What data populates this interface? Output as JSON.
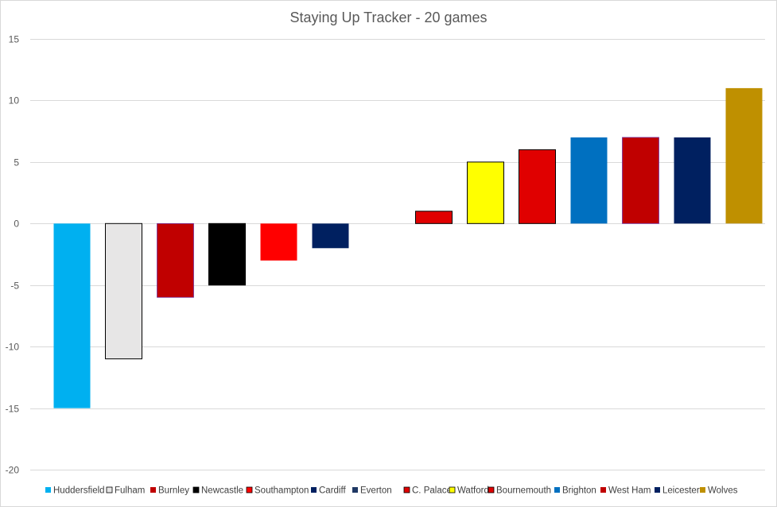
{
  "chart_data": {
    "type": "bar",
    "title": "Staying Up Tracker - 20 games",
    "xlabel": "",
    "ylabel": "",
    "ylim": [
      -20,
      15
    ],
    "yticks": [
      15,
      10,
      5,
      0,
      -5,
      -10,
      -15,
      -20
    ],
    "grid": true,
    "legend_position": "bottom",
    "series": [
      {
        "name": "Huddersfield",
        "value": -15,
        "color": "#00B0F0"
      },
      {
        "name": "Fulham",
        "value": -11,
        "color": "#E7E6E6"
      },
      {
        "name": "Burnley",
        "value": -6,
        "color": "#C00000"
      },
      {
        "name": "Newcastle",
        "value": -5,
        "color": "#000000"
      },
      {
        "name": "Southampton",
        "value": -3,
        "color": "#FF0000"
      },
      {
        "name": "Cardiff",
        "value": -2,
        "color": "#002060"
      },
      {
        "name": "Everton",
        "value": 0,
        "color": "#1F3864"
      },
      {
        "name": "C. Palace",
        "value": 1,
        "color": "#E00000"
      },
      {
        "name": "Watford",
        "value": 5,
        "color": "#FFFF00"
      },
      {
        "name": "Bournemouth",
        "value": 6,
        "color": "#E00000"
      },
      {
        "name": "Brighton",
        "value": 7,
        "color": "#0070C0"
      },
      {
        "name": "West Ham",
        "value": 7,
        "color": "#C00000"
      },
      {
        "name": "Leicester",
        "value": 7,
        "color": "#002060"
      },
      {
        "name": "Wolves",
        "value": 11,
        "color": "#BF9000"
      }
    ]
  }
}
